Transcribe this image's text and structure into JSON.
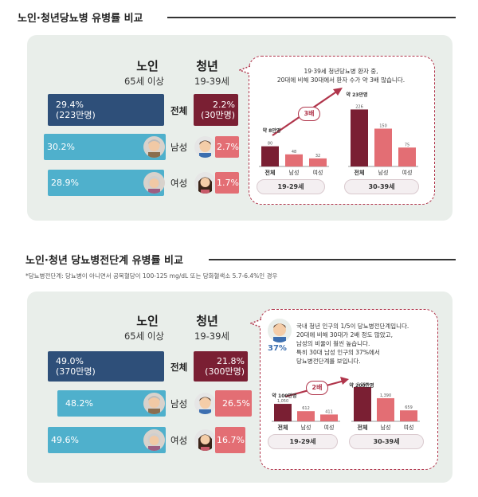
{
  "section1": {
    "title": "노인·청년당뇨병 유병률 비교",
    "elder": {
      "title": "노인",
      "age": "65세 이상"
    },
    "youth": {
      "title": "청년",
      "age": "19-39세"
    },
    "rows": [
      {
        "label": "전체",
        "elder_text": "29.4%",
        "elder_sub": "(223만명)",
        "youth_text": "2.2%",
        "youth_sub": "(30만명)"
      },
      {
        "label": "남성",
        "elder_text": "30.2%",
        "youth_text": "2.7%"
      },
      {
        "label": "여성",
        "elder_text": "28.9%",
        "youth_text": "1.7%"
      }
    ],
    "callout": {
      "line1": "19·39세 청년당뇨병 환자 중,",
      "line2": "20대에 비해 30대에서 환자 수가 약 3배 많습니다.",
      "times": "3배",
      "peak1": "약 8만명",
      "peak2": "약 23만명",
      "group1": "19-29세",
      "group2": "30-39세",
      "bar_labels": [
        "전체",
        "남성",
        "여성"
      ]
    }
  },
  "section2": {
    "title": "노인·청년 당뇨병전단계 유병률 비교",
    "note": "*당뇨병전단계: 당뇨병이 아니면서 공복혈당이 100-125 mg/dL 또는 당화혈색소 5.7-6.4%인 경우",
    "elder": {
      "title": "노인",
      "age": "65세 이상"
    },
    "youth": {
      "title": "청년",
      "age": "19-39세"
    },
    "rows": [
      {
        "label": "전체",
        "elder_text": "49.0%",
        "elder_sub": "(370만명)",
        "youth_text": "21.8%",
        "youth_sub": "(300만명)"
      },
      {
        "label": "남성",
        "elder_text": "48.2%",
        "youth_text": "26.5%"
      },
      {
        "label": "여성",
        "elder_text": "49.6%",
        "youth_text": "16.7%"
      }
    ],
    "callout": {
      "pct": "37%",
      "line1": "국내 청년 인구의 1/5이 당뇨병전단계입니다.",
      "line2": "20대에 비해 30대가 2배 정도 많았고,",
      "line3": "남성의 비율이 훨씬 높습니다.",
      "line4": "특히 30대 남성 인구의 37%에서",
      "line5": "당뇨병전단계를 보입니다.",
      "times": "2배",
      "peak1": "약 100만명",
      "peak2": "약 200만명",
      "group1": "19-29세",
      "group2": "30-39세",
      "bar_labels": [
        "전체",
        "남성",
        "여성"
      ]
    }
  },
  "colors": {
    "panel": "#e9eeea",
    "elder_total": "#2e4f79",
    "elder_gender": "#4fb0cc",
    "youth_total": "#7a1f33",
    "youth_gender": "#e36e74",
    "accent": "#b0354b"
  },
  "chart_data": [
    {
      "type": "bar",
      "title": "노인·청년당뇨병 유병률 비교",
      "categories": [
        "전체",
        "남성",
        "여성"
      ],
      "series": [
        {
          "name": "노인",
          "values": [
            29.4,
            30.2,
            28.9
          ]
        },
        {
          "name": "청년",
          "values": [
            2.2,
            2.7,
            1.7
          ]
        }
      ],
      "xlabel": "",
      "ylabel": "",
      "ylim": [
        0,
        35
      ]
    },
    {
      "type": "bar",
      "title": "",
      "categories": [
        "19-29세 전체",
        "19-29세 남성",
        "19-29세 여성",
        "30-39세 전체",
        "30-39세 남성",
        "30-39세 여성"
      ],
      "values": [
        80,
        48,
        32,
        226,
        150,
        75
      ],
      "xlabel": "",
      "ylabel": "",
      "ylim": [
        0,
        240
      ]
    },
    {
      "type": "bar",
      "title": "노인·청년 당뇨병전단계 유병률 비교",
      "categories": [
        "전체",
        "남성",
        "여성"
      ],
      "series": [
        {
          "name": "노인",
          "values": [
            49.0,
            48.2,
            49.6
          ]
        },
        {
          "name": "청년",
          "values": [
            21.8,
            26.5,
            16.7
          ]
        }
      ],
      "xlabel": "",
      "ylabel": "",
      "ylim": [
        0,
        55
      ]
    },
    {
      "type": "bar",
      "title": "",
      "categories": [
        "19-29세 전체",
        "19-29세 남성",
        "19-29세 여성",
        "30-39세 전체",
        "30-39세 남성",
        "30-39세 여성"
      ],
      "values": [
        1050,
        612,
        411,
        2060,
        1390,
        659
      ],
      "xlabel": "",
      "ylabel": "",
      "ylim": [
        0,
        2200
      ]
    }
  ]
}
